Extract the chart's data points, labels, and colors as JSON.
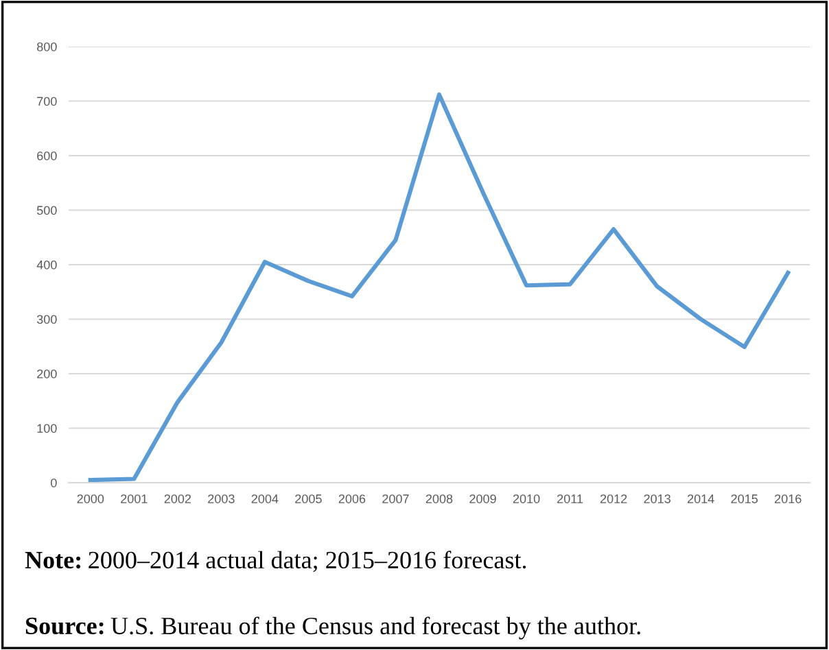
{
  "chart_data": {
    "type": "line",
    "categories": [
      "2000",
      "2001",
      "2002",
      "2003",
      "2004",
      "2005",
      "2006",
      "2007",
      "2008",
      "2009",
      "2010",
      "2011",
      "2012",
      "2013",
      "2014",
      "2015",
      "2016"
    ],
    "series": [
      {
        "color": "#5b9bd5",
        "values": [
          5,
          7,
          148,
          257,
          405,
          370,
          342,
          445,
          712,
          533,
          362,
          364,
          465,
          360,
          300,
          249,
          385
        ]
      }
    ],
    "ylim": [
      0,
      800
    ],
    "yticks": [
      0,
      100,
      200,
      300,
      400,
      500,
      600,
      700,
      800
    ],
    "grid": "y",
    "marker": "none",
    "line_style": "solid",
    "annotations": [
      "Note: 2000–2014 actual data; 2015–2016 forecast.",
      "Source: U.S. Bureau of the Census and forecast by the author."
    ]
  }
}
